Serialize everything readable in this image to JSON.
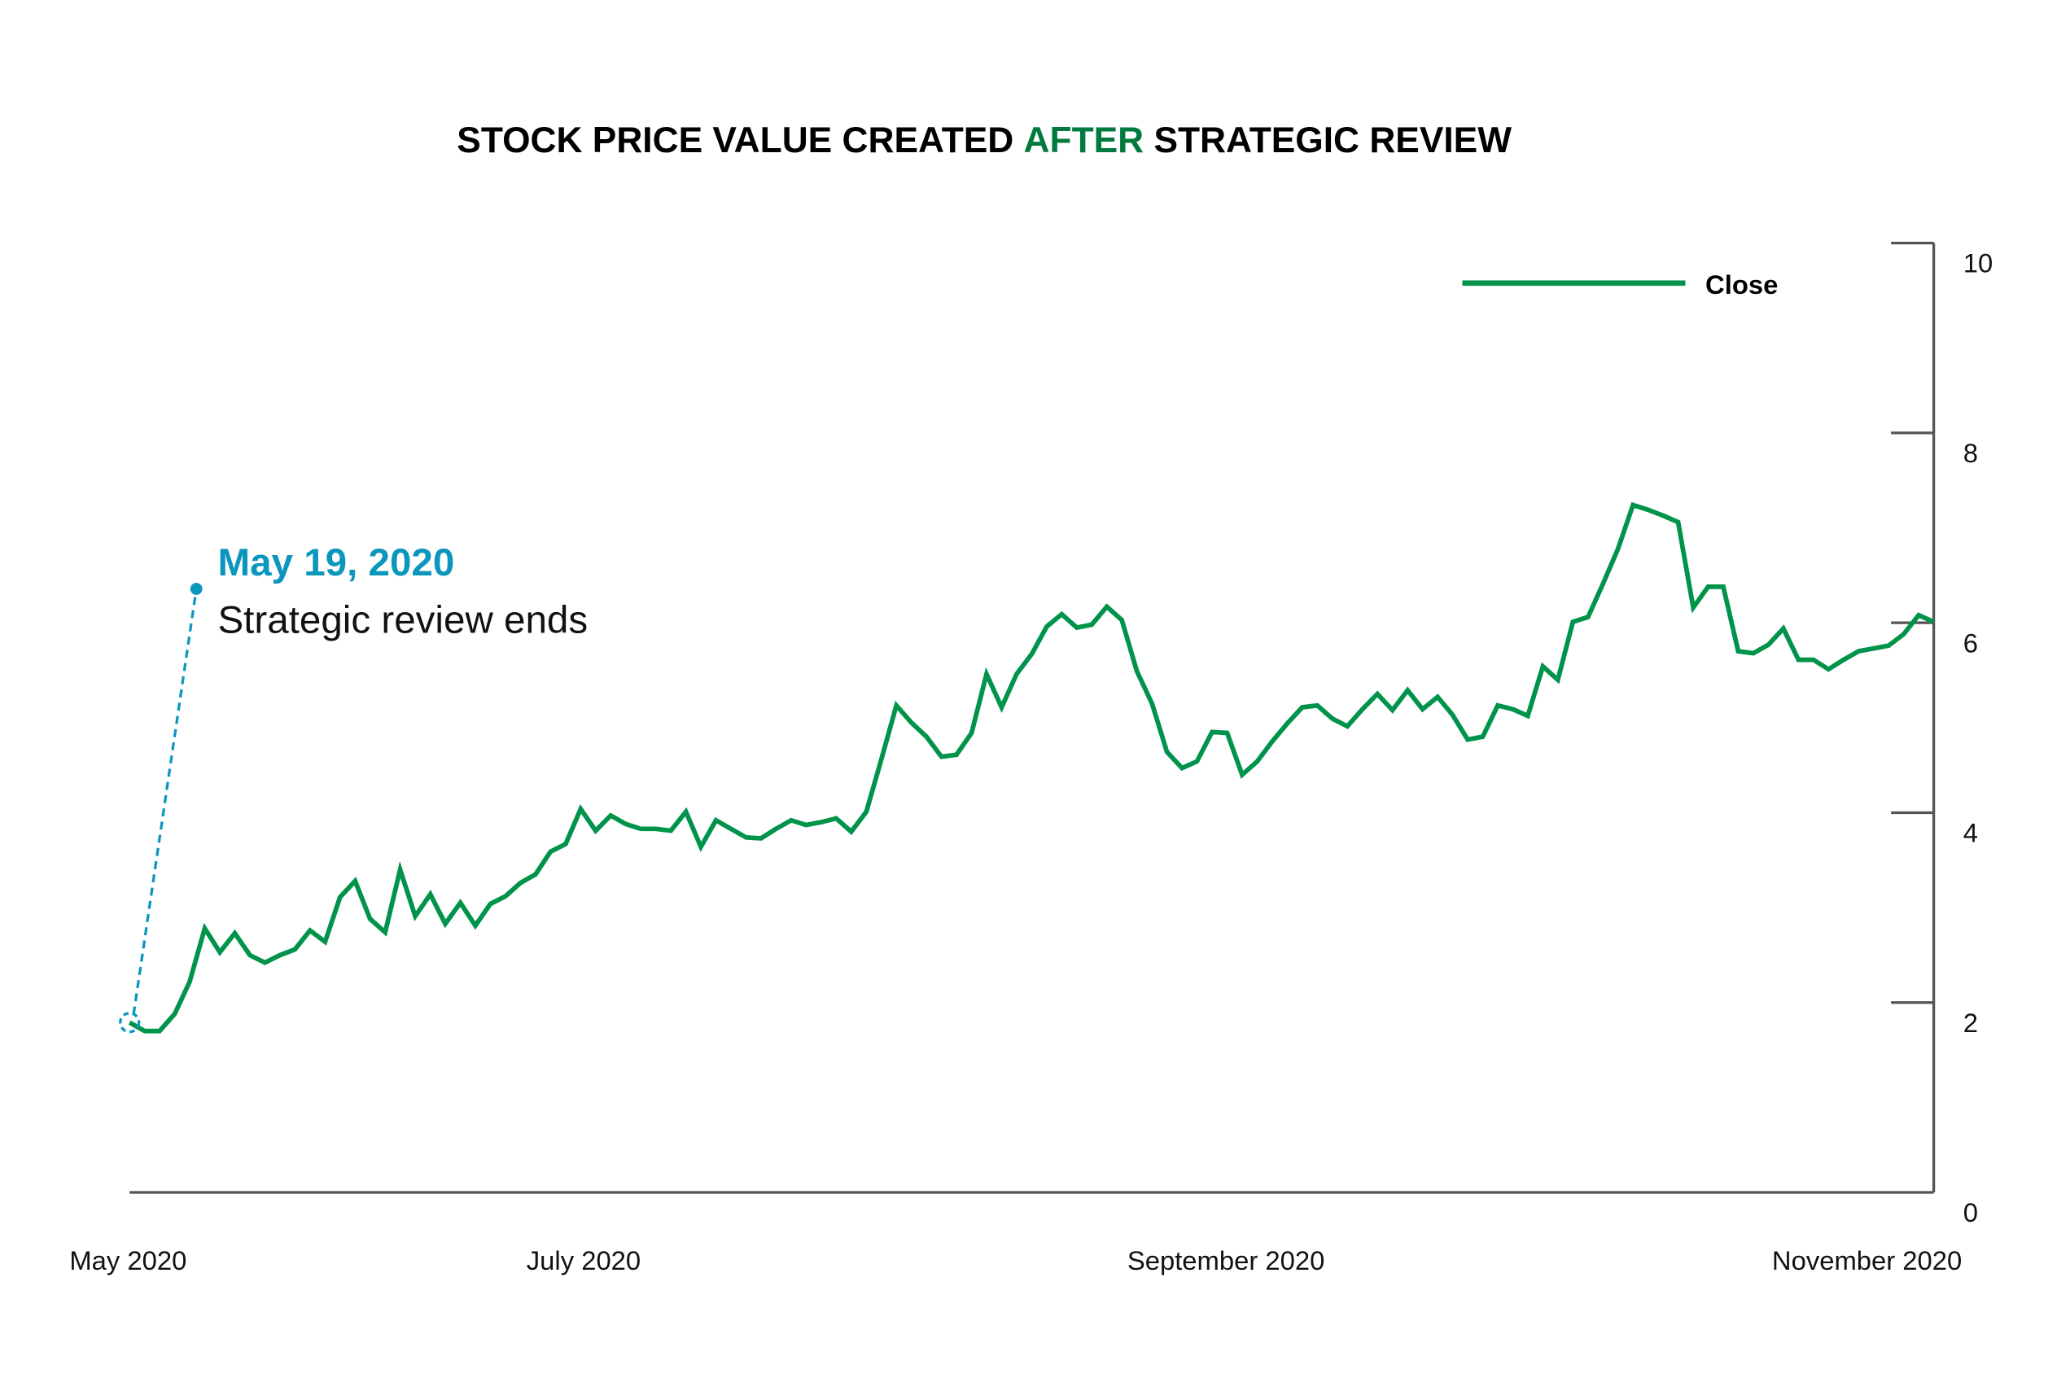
{
  "chart_data": {
    "type": "line",
    "title_parts": [
      "STOCK PRICE VALUE CREATED ",
      "AFTER",
      " STRATEGIC REVIEW"
    ],
    "title_highlight_color": "#007a3d",
    "xlabel": "",
    "ylabel": "",
    "x_tick_labels": [
      "May 2020",
      "July 2020",
      "September 2020",
      "November 2020"
    ],
    "y_ticks": [
      0,
      2,
      4,
      6,
      8,
      10
    ],
    "ylim": [
      0,
      10
    ],
    "y_axis_side": "right",
    "grid": false,
    "legend": {
      "placement": "top-right",
      "entries": [
        "Close"
      ]
    },
    "series": [
      {
        "name": "Close",
        "color": "#00934a",
        "x": [
          "2020-05-19",
          "2020-05-20",
          "2020-05-21",
          "2020-05-22",
          "2020-05-25",
          "2020-05-26",
          "2020-05-27",
          "2020-05-28",
          "2020-05-29",
          "2020-06-01",
          "2020-06-02",
          "2020-06-03",
          "2020-06-04",
          "2020-06-05",
          "2020-06-08",
          "2020-06-09",
          "2020-06-10",
          "2020-06-11",
          "2020-06-12",
          "2020-06-15",
          "2020-06-16",
          "2020-06-17",
          "2020-06-18",
          "2020-06-19",
          "2020-06-22",
          "2020-06-23",
          "2020-06-24",
          "2020-06-25",
          "2020-06-26",
          "2020-06-29",
          "2020-06-30",
          "2020-07-01",
          "2020-07-02",
          "2020-07-03",
          "2020-07-06",
          "2020-07-07",
          "2020-07-08",
          "2020-07-09",
          "2020-07-10",
          "2020-07-13",
          "2020-07-14",
          "2020-07-15",
          "2020-07-16",
          "2020-07-17",
          "2020-07-20",
          "2020-07-21",
          "2020-07-22",
          "2020-07-23",
          "2020-07-24",
          "2020-07-27",
          "2020-07-28",
          "2020-07-29",
          "2020-07-30",
          "2020-07-31",
          "2020-08-03",
          "2020-08-04",
          "2020-08-05",
          "2020-08-06",
          "2020-08-07",
          "2020-08-10",
          "2020-08-11",
          "2020-08-12",
          "2020-08-13",
          "2020-08-14",
          "2020-08-17",
          "2020-08-18",
          "2020-08-19",
          "2020-08-20",
          "2020-08-21",
          "2020-08-24",
          "2020-08-25",
          "2020-08-26",
          "2020-08-27",
          "2020-08-28",
          "2020-08-31",
          "2020-09-01",
          "2020-09-02",
          "2020-09-03",
          "2020-09-04",
          "2020-09-07",
          "2020-09-08",
          "2020-09-09",
          "2020-09-10",
          "2020-09-11",
          "2020-09-14",
          "2020-09-15",
          "2020-09-16",
          "2020-09-17",
          "2020-09-18",
          "2020-09-21",
          "2020-09-22",
          "2020-09-23",
          "2020-09-24",
          "2020-09-25",
          "2020-09-28",
          "2020-09-29",
          "2020-09-30",
          "2020-10-01",
          "2020-10-02",
          "2020-10-05",
          "2020-10-06",
          "2020-10-07",
          "2020-10-08",
          "2020-10-09",
          "2020-10-12",
          "2020-10-13",
          "2020-10-14",
          "2020-10-15",
          "2020-10-16",
          "2020-10-19",
          "2020-10-20",
          "2020-10-21",
          "2020-10-22",
          "2020-10-23",
          "2020-10-26",
          "2020-10-27",
          "2020-10-28",
          "2020-10-29",
          "2020-10-30",
          "2020-11-02",
          "2020-11-03"
        ],
        "values": [
          1.79,
          1.7,
          1.7,
          1.88,
          2.22,
          2.78,
          2.53,
          2.73,
          2.5,
          2.42,
          2.5,
          2.56,
          2.76,
          2.64,
          3.11,
          3.28,
          2.88,
          2.74,
          3.4,
          2.91,
          3.14,
          2.83,
          3.05,
          2.81,
          3.04,
          3.12,
          3.26,
          3.35,
          3.59,
          3.67,
          4.04,
          3.81,
          3.97,
          3.88,
          3.83,
          3.83,
          3.81,
          4.01,
          3.64,
          3.92,
          3.83,
          3.74,
          3.73,
          3.83,
          3.92,
          3.87,
          3.9,
          3.94,
          3.8,
          4.01,
          4.56,
          5.13,
          4.95,
          4.8,
          4.59,
          4.61,
          4.84,
          5.46,
          5.11,
          5.46,
          5.67,
          5.96,
          6.09,
          5.95,
          5.98,
          6.17,
          6.03,
          5.49,
          5.15,
          4.64,
          4.47,
          4.54,
          4.85,
          4.84,
          4.4,
          4.54,
          4.75,
          4.94,
          5.11,
          5.13,
          4.99,
          4.91,
          5.09,
          5.25,
          5.08,
          5.29,
          5.09,
          5.22,
          5.03,
          4.77,
          4.8,
          5.13,
          5.09,
          5.02,
          5.54,
          5.4,
          6.01,
          6.06,
          6.41,
          6.78,
          7.24,
          7.19,
          7.13,
          7.06,
          6.16,
          6.38,
          6.38,
          5.7,
          5.68,
          5.77,
          5.94,
          5.61,
          5.61,
          5.51,
          5.61,
          5.7,
          5.73,
          5.76,
          5.88,
          6.08,
          6.01
        ]
      }
    ],
    "annotation": {
      "date_label": "May 19, 2020",
      "text": "Strategic review ends",
      "color": "#0b96bd",
      "anchor_point_index": 0
    },
    "axis_color": "#555555"
  }
}
